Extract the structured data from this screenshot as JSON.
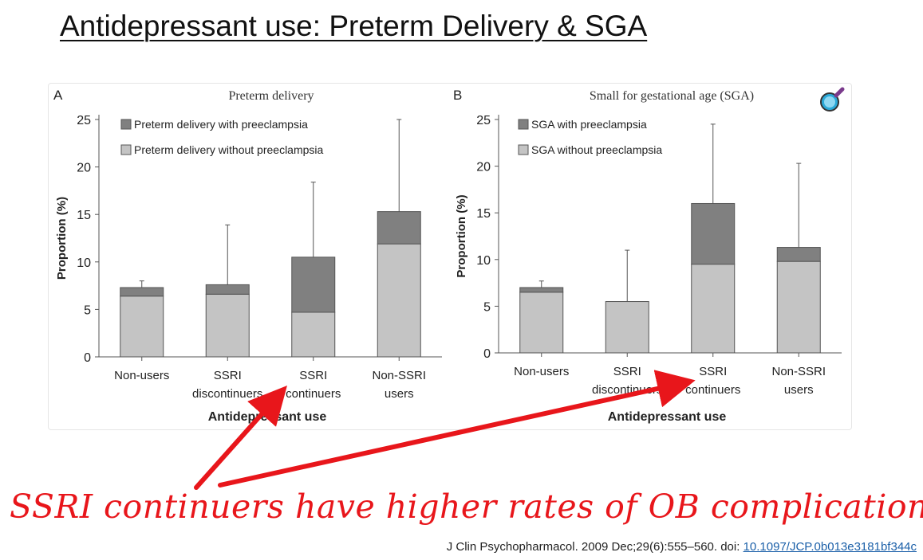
{
  "slide": {
    "title": "Antidepressant use:  Preterm Delivery & SGA",
    "annotation": "SSRI continuers have higher rates of OB complications.",
    "citation_text": "J Clin Psychopharmacol. 2009 Dec;29(6):555–560. doi: ",
    "citation_doi": "10.1097/JCP.0b013e3181bf344c"
  },
  "icons": {
    "search_badge": "magnifier-icon"
  },
  "colors": {
    "dark_segment": "#808080",
    "light_segment": "#c4c4c4",
    "arrow": "#e8161b"
  },
  "chart_data": [
    {
      "type": "bar",
      "stacked": true,
      "panel_label": "A",
      "title": "Preterm delivery",
      "xlabel": "Antidepressant use",
      "ylabel": "Proportion (%)",
      "ylim": [
        0,
        25
      ],
      "yticks": [
        0,
        5,
        10,
        15,
        20,
        25
      ],
      "categories": [
        "Non-users",
        "SSRI discontinuers",
        "SSRI continuers",
        "Non-SSRI users"
      ],
      "series": [
        {
          "name": "Preterm delivery without preeclampsia",
          "values": [
            6.4,
            6.6,
            4.7,
            11.9
          ]
        },
        {
          "name": "Preterm delivery with preeclampsia",
          "values": [
            0.9,
            1.0,
            5.8,
            3.4
          ]
        }
      ],
      "error_upper": [
        8.0,
        13.9,
        18.4,
        25.0
      ],
      "legend": "top-left"
    },
    {
      "type": "bar",
      "stacked": true,
      "panel_label": "B",
      "title": "Small for gestational age (SGA)",
      "xlabel": "Antidepressant use",
      "ylabel": "Proportion (%)",
      "ylim": [
        0,
        25
      ],
      "yticks": [
        0,
        5,
        10,
        15,
        20,
        25
      ],
      "categories": [
        "Non-users",
        "SSRI discontinuers",
        "SSRI continuers",
        "Non-SSRI users"
      ],
      "series": [
        {
          "name": "SGA without preeclampsia",
          "values": [
            6.5,
            5.5,
            9.5,
            9.8
          ]
        },
        {
          "name": "SGA with preeclampsia",
          "values": [
            0.5,
            0.0,
            6.5,
            1.5
          ]
        }
      ],
      "error_upper": [
        7.7,
        11.0,
        24.5,
        20.3
      ],
      "legend": "top-left"
    }
  ]
}
